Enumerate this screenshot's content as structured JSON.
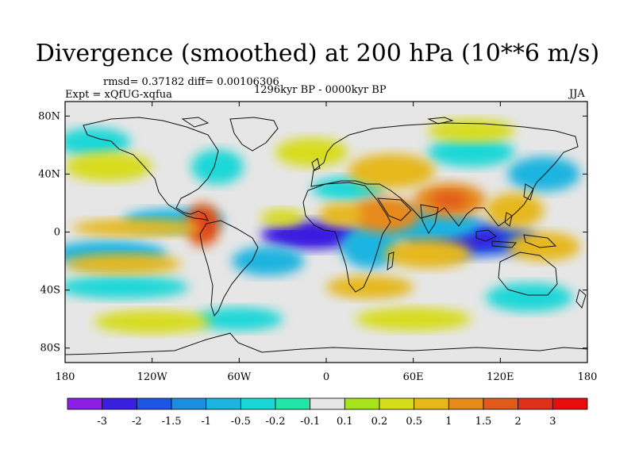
{
  "title": "Divergence (smoothed) at 200 hPa (10**6 m/s)",
  "stats": "rmsd= 0.37182 diff= 0.00106306",
  "experiment": "Expt = xQfUG-xqfua",
  "period": "1296kyr BP - 0000kyr BP",
  "season": "JJA",
  "axes": {
    "lat_labels": [
      "80N",
      "40N",
      "0",
      "40S",
      "80S"
    ],
    "lat_values": [
      80,
      40,
      0,
      -40,
      -80
    ],
    "lon_labels": [
      "180",
      "120W",
      "60W",
      "0",
      "60E",
      "120E",
      "180"
    ],
    "lon_values": [
      -180,
      -120,
      -60,
      0,
      60,
      120,
      180
    ]
  },
  "colorbar": {
    "labels": [
      "-3",
      "-2",
      "-1.5",
      "-1",
      "-0.5",
      "-0.2",
      "-0.1",
      "0.1",
      "0.2",
      "0.5",
      "1",
      "1.5",
      "2",
      "3"
    ],
    "colors": [
      "#8c1fe6",
      "#3a1fe0",
      "#1f55e6",
      "#1d8de0",
      "#1cb4e0",
      "#1ad7d7",
      "#22e6a8",
      "#e6e6e6",
      "#a6e31a",
      "#d7dc1a",
      "#e6b81a",
      "#e68a1a",
      "#e05a1a",
      "#e0301a",
      "#e60d0d"
    ]
  },
  "chart_data": {
    "type": "heatmap",
    "title": "Divergence (smoothed) at 200 hPa (10**6 m/s)",
    "units": "10**6 m/s",
    "xlim": [
      -180,
      180
    ],
    "ylim": [
      -90,
      90
    ],
    "levels": [
      -3,
      -2,
      -1.5,
      -1,
      -0.5,
      -0.2,
      -0.1,
      0.1,
      0.2,
      0.5,
      1,
      1.5,
      2,
      3
    ],
    "features": [
      {
        "lon": -10,
        "lat": -2,
        "rx": 35,
        "ry": 10,
        "value": -2.2
      },
      {
        "lon": 100,
        "lat": -5,
        "rx": 45,
        "ry": 12,
        "value": -1.6
      },
      {
        "lon": 65,
        "lat": 5,
        "rx": 40,
        "ry": 12,
        "value": -0.9
      },
      {
        "lon": -105,
        "lat": 8,
        "rx": 35,
        "ry": 8,
        "value": -0.7
      },
      {
        "lon": -150,
        "lat": -15,
        "rx": 40,
        "ry": 9,
        "value": -0.6
      },
      {
        "lon": -40,
        "lat": -20,
        "rx": 25,
        "ry": 10,
        "value": -0.6
      },
      {
        "lon": 30,
        "lat": -10,
        "rx": 20,
        "ry": 15,
        "value": -0.6
      },
      {
        "lon": 150,
        "lat": 40,
        "rx": 25,
        "ry": 12,
        "value": -0.7
      },
      {
        "lon": -160,
        "lat": 62,
        "rx": 25,
        "ry": 10,
        "value": -0.4
      },
      {
        "lon": -75,
        "lat": 45,
        "rx": 18,
        "ry": 12,
        "value": -0.4
      },
      {
        "lon": 15,
        "lat": 30,
        "rx": 25,
        "ry": 8,
        "value": -0.4
      },
      {
        "lon": -140,
        "lat": -38,
        "rx": 45,
        "ry": 8,
        "value": -0.4
      },
      {
        "lon": -60,
        "lat": -60,
        "rx": 30,
        "ry": 8,
        "value": -0.4
      },
      {
        "lon": 100,
        "lat": 55,
        "rx": 30,
        "ry": 10,
        "value": -0.3
      },
      {
        "lon": 140,
        "lat": -45,
        "rx": 30,
        "ry": 10,
        "value": -0.3
      },
      {
        "lon": -85,
        "lat": 5,
        "rx": 12,
        "ry": 15,
        "value": 1.8
      },
      {
        "lon": 40,
        "lat": 12,
        "rx": 25,
        "ry": 12,
        "value": 1.1
      },
      {
        "lon": 85,
        "lat": 22,
        "rx": 25,
        "ry": 12,
        "value": 1.2
      },
      {
        "lon": 45,
        "lat": 42,
        "rx": 30,
        "ry": 12,
        "value": 0.9
      },
      {
        "lon": 10,
        "lat": 12,
        "rx": 15,
        "ry": 8,
        "value": 0.9
      },
      {
        "lon": -130,
        "lat": 3,
        "rx": 45,
        "ry": 6,
        "value": 0.6
      },
      {
        "lon": -140,
        "lat": -22,
        "rx": 40,
        "ry": 7,
        "value": 0.6
      },
      {
        "lon": -150,
        "lat": 45,
        "rx": 30,
        "ry": 10,
        "value": 0.4
      },
      {
        "lon": 70,
        "lat": -15,
        "rx": 30,
        "ry": 10,
        "value": 0.7
      },
      {
        "lon": 130,
        "lat": 15,
        "rx": 20,
        "ry": 12,
        "value": 0.8
      },
      {
        "lon": 150,
        "lat": -10,
        "rx": 25,
        "ry": 10,
        "value": 0.6
      },
      {
        "lon": -10,
        "lat": 55,
        "rx": 25,
        "ry": 10,
        "value": 0.3
      },
      {
        "lon": 100,
        "lat": 70,
        "rx": 30,
        "ry": 8,
        "value": 0.3
      },
      {
        "lon": -120,
        "lat": -62,
        "rx": 40,
        "ry": 8,
        "value": 0.3
      },
      {
        "lon": 60,
        "lat": -60,
        "rx": 40,
        "ry": 8,
        "value": 0.3
      },
      {
        "lon": 30,
        "lat": -38,
        "rx": 30,
        "ry": 8,
        "value": 0.5
      },
      {
        "lon": -30,
        "lat": 10,
        "rx": 15,
        "ry": 6,
        "value": 0.4
      }
    ]
  }
}
